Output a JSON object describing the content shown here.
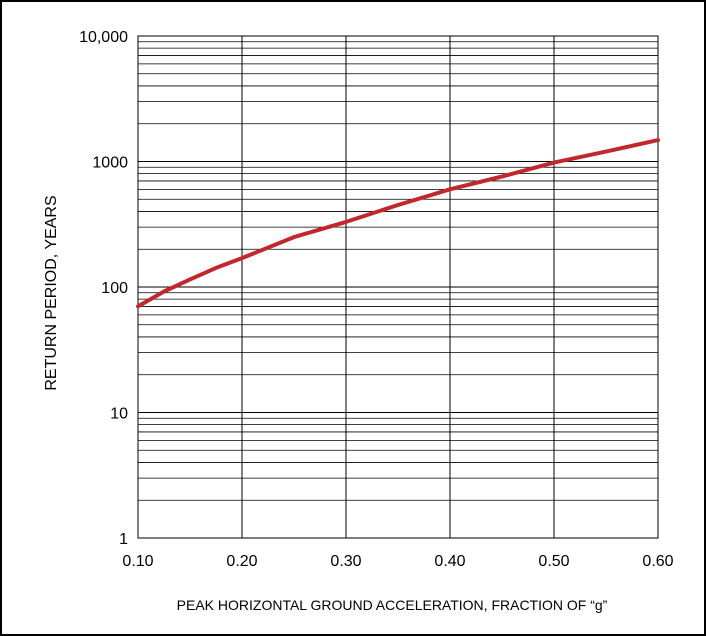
{
  "chart_data": {
    "type": "line",
    "xlabel": "PEAK HORIZONTAL GROUND ACCELERATION, FRACTION OF “g”",
    "ylabel": "RETURN PERIOD, YEARS",
    "xlim": [
      0.1,
      0.6
    ],
    "ylim": [
      1,
      10000
    ],
    "y_scale": "log",
    "grid": true,
    "x_ticks": [
      0.1,
      0.2,
      0.3,
      0.4,
      0.5,
      0.6
    ],
    "x_tick_labels": [
      "0.10",
      "0.20",
      "0.30",
      "0.40",
      "0.50",
      "0.60"
    ],
    "y_ticks": [
      1,
      10,
      100,
      1000,
      10000
    ],
    "y_tick_labels": [
      "1",
      "10",
      "100",
      "1000",
      "10,000"
    ],
    "series": [
      {
        "color": "#c0282d",
        "x": [
          0.1,
          0.125,
          0.15,
          0.175,
          0.2,
          0.25,
          0.3,
          0.35,
          0.4,
          0.45,
          0.5,
          0.55,
          0.6
        ],
        "y": [
          70,
          92,
          115,
          142,
          170,
          250,
          330,
          450,
          600,
          760,
          980,
          1200,
          1480
        ]
      }
    ]
  }
}
